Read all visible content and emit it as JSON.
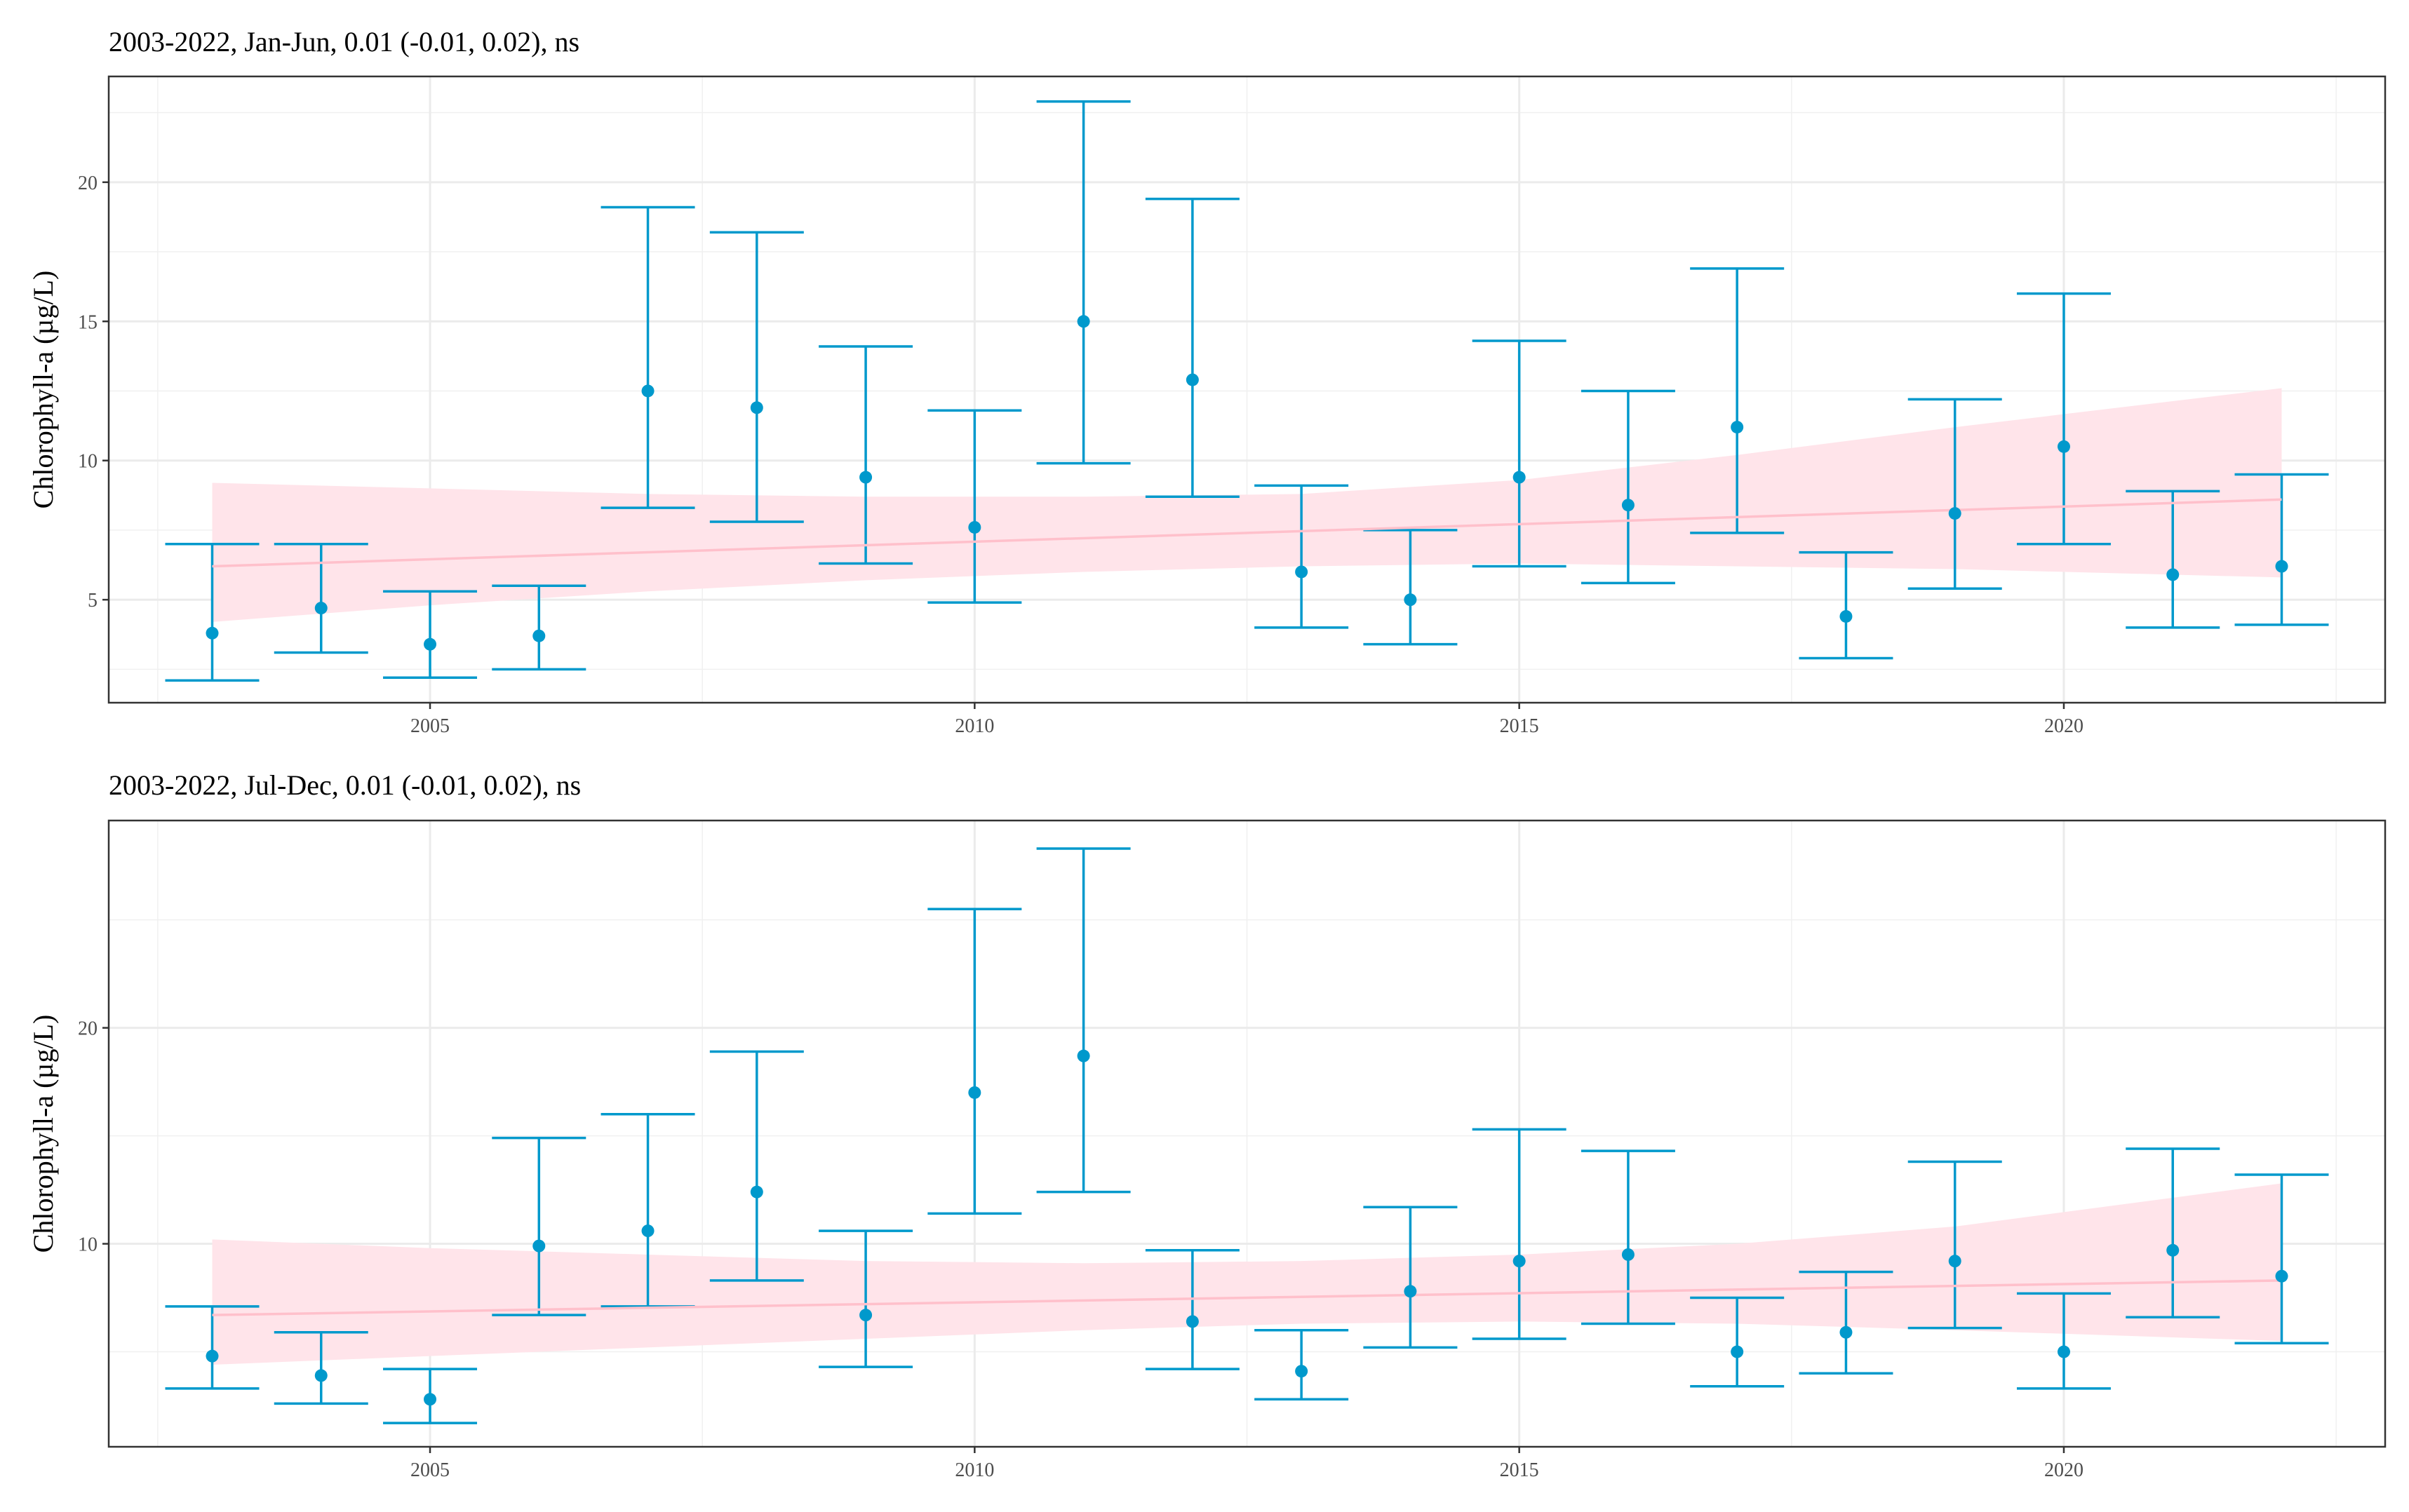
{
  "chart_data": [
    {
      "type": "scatter",
      "title": "2003-2022, Jan-Jun, 0.01 (-0.01, 0.02), ns",
      "xlabel": "",
      "ylabel": "Chlorophyll-a (µg/L)",
      "xlim": [
        2002.05,
        2022.95
      ],
      "ylim": [
        1.3,
        23.8
      ],
      "x_ticks": [
        2005,
        2010,
        2015,
        2020
      ],
      "y_ticks": [
        5,
        10,
        15,
        20
      ],
      "grid": true,
      "legend": "none",
      "colors": {
        "points": "#0099cc",
        "trend_line": "#ffc0cb",
        "trend_band": "#ffe4ea"
      },
      "series": [
        {
          "x": [
            2003,
            2004,
            2005,
            2006,
            2007,
            2008,
            2009,
            2010,
            2011,
            2012,
            2013,
            2014,
            2015,
            2016,
            2017,
            2018,
            2019,
            2020,
            2021,
            2022
          ],
          "y": [
            3.8,
            4.7,
            3.4,
            3.7,
            12.5,
            11.9,
            9.4,
            7.6,
            15.0,
            12.9,
            6.0,
            5.0,
            9.4,
            8.4,
            11.2,
            4.4,
            8.1,
            10.5,
            5.9,
            6.2
          ],
          "lower": [
            2.1,
            3.1,
            2.2,
            2.5,
            8.3,
            7.8,
            6.3,
            4.9,
            9.9,
            8.7,
            4.0,
            3.4,
            6.2,
            5.6,
            7.4,
            2.9,
            5.4,
            7.0,
            4.0,
            4.1
          ],
          "upper": [
            7.0,
            7.0,
            5.3,
            5.5,
            19.1,
            18.2,
            14.1,
            11.8,
            22.9,
            19.4,
            9.1,
            7.5,
            14.3,
            12.5,
            16.9,
            6.7,
            12.2,
            16.0,
            8.9,
            9.5
          ]
        }
      ],
      "trend": {
        "x": [
          2003,
          2022
        ],
        "fit": [
          6.2,
          8.6
        ],
        "band_x": [
          2003,
          2005,
          2007,
          2009,
          2011,
          2013,
          2015,
          2017,
          2019,
          2022
        ],
        "band_lower": [
          4.2,
          4.8,
          5.3,
          5.7,
          6.0,
          6.2,
          6.3,
          6.2,
          6.1,
          5.8
        ],
        "band_upper": [
          9.2,
          9.0,
          8.8,
          8.7,
          8.7,
          8.8,
          9.3,
          10.2,
          11.2,
          12.6
        ]
      }
    },
    {
      "type": "scatter",
      "title": "2003-2022, Jul-Dec, 0.01 (-0.01, 0.02), ns",
      "xlabel": "",
      "ylabel": "Chlorophyll-a (µg/L)",
      "xlim": [
        2002.05,
        2022.95
      ],
      "ylim": [
        0.6,
        29.6
      ],
      "x_ticks": [
        2005,
        2010,
        2015,
        2020
      ],
      "y_ticks": [
        10,
        20
      ],
      "grid": true,
      "legend": "none",
      "colors": {
        "points": "#0099cc",
        "trend_line": "#ffc0cb",
        "trend_band": "#ffe4ea"
      },
      "series": [
        {
          "x": [
            2003,
            2004,
            2005,
            2006,
            2007,
            2008,
            2009,
            2010,
            2011,
            2012,
            2013,
            2014,
            2015,
            2016,
            2017,
            2018,
            2019,
            2020,
            2021,
            2022
          ],
          "y": [
            4.8,
            3.9,
            2.8,
            9.9,
            10.6,
            12.4,
            6.7,
            17.0,
            18.7,
            6.4,
            4.1,
            7.8,
            9.2,
            9.5,
            5.0,
            5.9,
            9.2,
            5.0,
            9.7,
            8.5
          ],
          "lower": [
            3.3,
            2.6,
            1.7,
            6.7,
            7.1,
            8.3,
            4.3,
            11.4,
            12.4,
            4.2,
            2.8,
            5.2,
            5.6,
            6.3,
            3.4,
            4.0,
            6.1,
            3.3,
            6.6,
            5.4
          ],
          "upper": [
            7.1,
            5.9,
            4.2,
            14.9,
            16.0,
            18.9,
            10.6,
            25.5,
            28.3,
            9.7,
            6.0,
            11.7,
            15.3,
            14.3,
            7.5,
            8.7,
            13.8,
            7.7,
            14.4,
            13.2
          ]
        }
      ],
      "trend": {
        "x": [
          2003,
          2022
        ],
        "fit": [
          6.7,
          8.3
        ],
        "band_x": [
          2003,
          2005,
          2007,
          2009,
          2011,
          2013,
          2015,
          2017,
          2019,
          2022
        ],
        "band_lower": [
          4.4,
          4.8,
          5.2,
          5.6,
          6.0,
          6.3,
          6.4,
          6.3,
          6.0,
          5.5
        ],
        "band_upper": [
          10.2,
          9.8,
          9.5,
          9.2,
          9.1,
          9.2,
          9.5,
          10.0,
          10.8,
          12.8
        ]
      }
    }
  ]
}
